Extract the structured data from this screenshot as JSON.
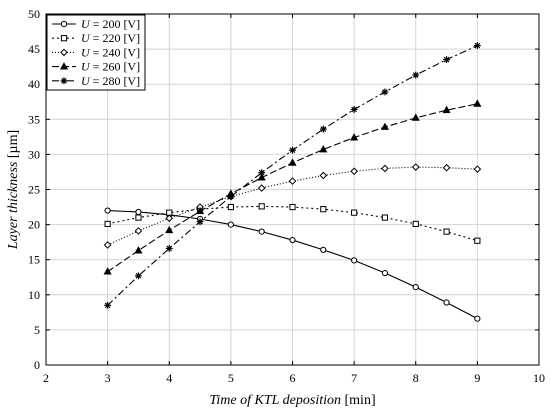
{
  "chart_data": {
    "type": "line",
    "xlabel_italic": "Time of KTL deposition",
    "xlabel_unit": "[min]",
    "ylabel_italic": "Layer thickness",
    "ylabel_unit": "[µm]",
    "xlim": [
      2,
      10
    ],
    "ylim": [
      0,
      50
    ],
    "xticks": [
      "2",
      "3",
      "4",
      "5",
      "6",
      "7",
      "8",
      "9",
      "10"
    ],
    "yticks": [
      "0",
      "5",
      "10",
      "15",
      "20",
      "25",
      "30",
      "35",
      "40",
      "45",
      "50"
    ],
    "grid": true,
    "legend_position": "top-left",
    "x": [
      3,
      3.5,
      4,
      4.5,
      5,
      5.5,
      6,
      6.5,
      7,
      7.5,
      8,
      8.5,
      9
    ],
    "series": [
      {
        "name_var": "U",
        "name_rest": " = 200 [V]",
        "marker": "circle",
        "dash": "",
        "values": [
          22.0,
          21.8,
          21.4,
          20.8,
          20.0,
          19.0,
          17.8,
          16.4,
          14.9,
          13.1,
          11.1,
          8.9,
          6.6
        ]
      },
      {
        "name_var": "U",
        "name_rest": " = 220 [V]",
        "marker": "square",
        "dash": "2,3",
        "values": [
          20.1,
          21.0,
          21.7,
          22.2,
          22.5,
          22.6,
          22.5,
          22.2,
          21.7,
          21.0,
          20.1,
          19.0,
          17.7
        ]
      },
      {
        "name_var": "U",
        "name_rest": " = 240 [V]",
        "marker": "diamond",
        "dash": "1,2",
        "values": [
          17.1,
          19.1,
          20.9,
          22.5,
          24.0,
          25.2,
          26.2,
          27.0,
          27.6,
          28.0,
          28.2,
          28.1,
          27.9
        ]
      },
      {
        "name_var": "U",
        "name_rest": " = 260 [V]",
        "marker": "triangle",
        "dash": "7,3",
        "values": [
          13.3,
          16.3,
          19.2,
          21.9,
          24.4,
          26.7,
          28.8,
          30.7,
          32.4,
          33.9,
          35.2,
          36.3,
          37.2
        ]
      },
      {
        "name_var": "U",
        "name_rest": " = 280 [V]",
        "marker": "asterisk",
        "dash": "7,3,2,3",
        "values": [
          8.5,
          12.7,
          16.6,
          20.4,
          24.0,
          27.4,
          30.6,
          33.6,
          36.4,
          38.9,
          41.3,
          43.5,
          45.5
        ]
      }
    ]
  }
}
